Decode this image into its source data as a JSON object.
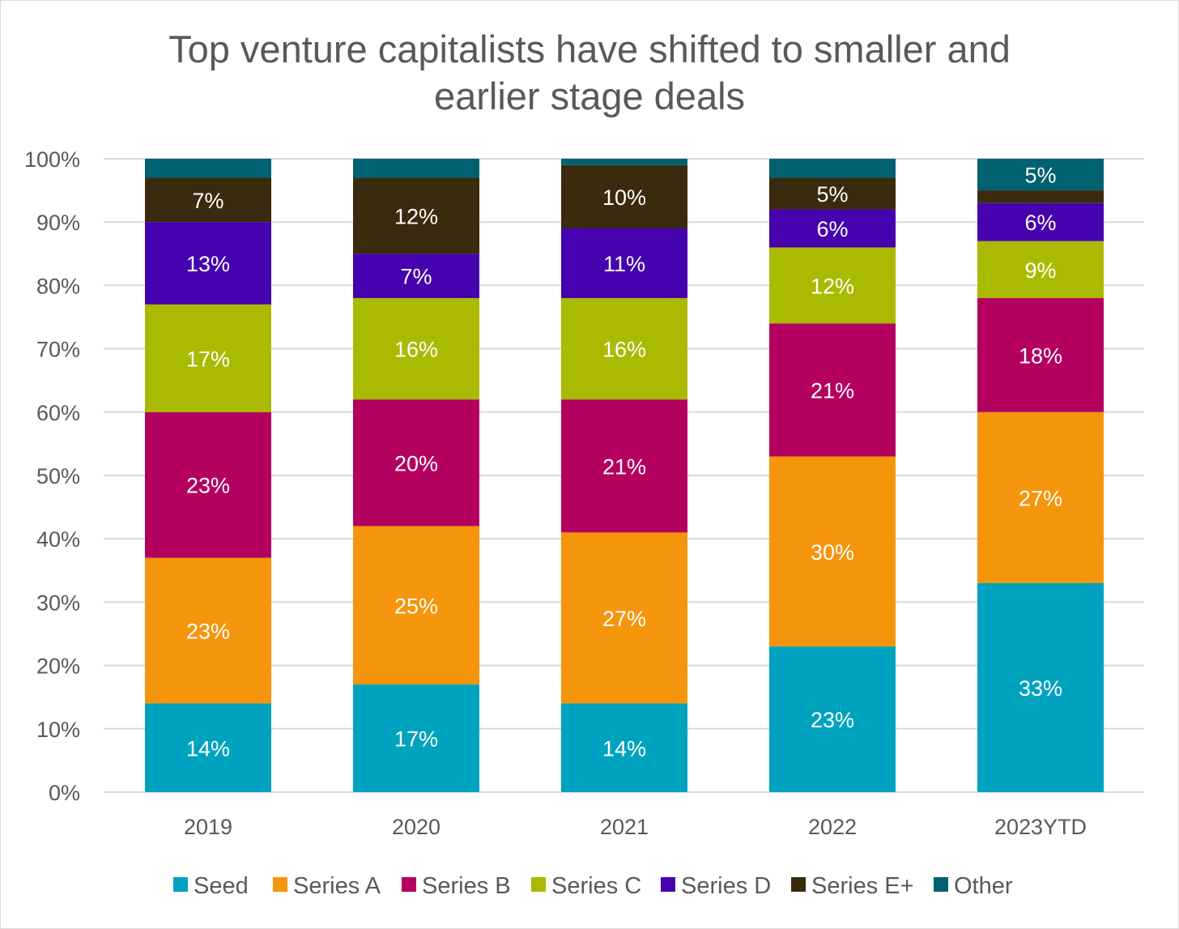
{
  "chart_data": {
    "type": "bar",
    "stacked": true,
    "title_lines": [
      "Top venture capitalists have shifted to smaller and",
      "earlier stage deals"
    ],
    "categories": [
      "2019",
      "2020",
      "2021",
      "2022",
      "2023YTD"
    ],
    "ylim": [
      0,
      100
    ],
    "y_ticks": [
      "0%",
      "10%",
      "20%",
      "30%",
      "40%",
      "50%",
      "60%",
      "70%",
      "80%",
      "90%",
      "100%"
    ],
    "grid": true,
    "legend_position": "bottom",
    "series": [
      {
        "name": "Seed",
        "color": "#00A3BF",
        "values": [
          14,
          17,
          14,
          23,
          33
        ],
        "labels": [
          "14%",
          "17%",
          "14%",
          "23%",
          "33%"
        ]
      },
      {
        "name": "Series A",
        "color": "#F5950C",
        "values": [
          23,
          25,
          27,
          30,
          27
        ],
        "labels": [
          "23%",
          "25%",
          "27%",
          "30%",
          "27%"
        ]
      },
      {
        "name": "Series B",
        "color": "#B4005E",
        "values": [
          23,
          20,
          21,
          21,
          18
        ],
        "labels": [
          "23%",
          "20%",
          "21%",
          "21%",
          "18%"
        ]
      },
      {
        "name": "Series C",
        "color": "#A9BA00",
        "values": [
          17,
          16,
          16,
          12,
          9
        ],
        "labels": [
          "17%",
          "16%",
          "16%",
          "12%",
          "9%"
        ]
      },
      {
        "name": "Series D",
        "color": "#4602AE",
        "values": [
          13,
          7,
          11,
          6,
          6
        ],
        "labels": [
          "13%",
          "7%",
          "11%",
          "6%",
          "6%"
        ]
      },
      {
        "name": "Series E+",
        "color": "#3A2A0E",
        "values": [
          7,
          12,
          10,
          5,
          2
        ],
        "labels": [
          "7%",
          "12%",
          "10%",
          "5%",
          ""
        ]
      },
      {
        "name": "Other",
        "color": "#006170",
        "values": [
          3,
          3,
          1,
          3,
          5
        ],
        "labels": [
          "",
          "",
          "",
          "",
          "5%"
        ]
      }
    ]
  }
}
